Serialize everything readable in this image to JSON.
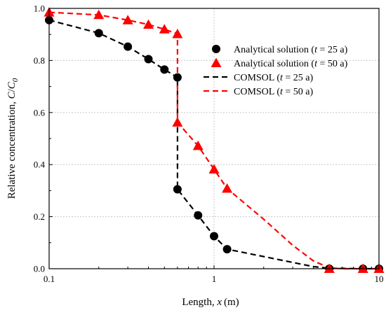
{
  "chart_data": {
    "type": "line",
    "xlabel": "Length, x (m)",
    "xlabel_parts": {
      "prefix": "Length, ",
      "var": "x",
      "unit": " (m)"
    },
    "ylabel": "Relative concentration, C/C0",
    "ylabel_parts": {
      "prefix": "Relative concentration, ",
      "var1": "C",
      "slash": "/",
      "var2": "C",
      "sub": "0"
    },
    "xscale": "log",
    "xlim": [
      0.1,
      10
    ],
    "ylim": [
      0,
      1.0
    ],
    "x_ticks": [
      {
        "value": 0.1,
        "label": "0.1"
      },
      {
        "value": 1,
        "label": "1"
      },
      {
        "value": 10,
        "label": "10"
      }
    ],
    "y_ticks": [
      {
        "value": 0.0,
        "label": "0.0"
      },
      {
        "value": 0.2,
        "label": "0.2"
      },
      {
        "value": 0.4,
        "label": "0.4"
      },
      {
        "value": 0.6,
        "label": "0.6"
      },
      {
        "value": 0.8,
        "label": "0.8"
      },
      {
        "value": 1.0,
        "label": "1.0"
      }
    ],
    "grid": true,
    "legend_position": "upper-right",
    "series": [
      {
        "name": "Analytical solution (t = 25 a)",
        "label_parts": {
          "prefix": "Analytical solution (",
          "var": "t",
          "suffix": " = 25 a)"
        },
        "kind": "scatter",
        "marker": "circle",
        "color": "#000000",
        "x": [
          0.1,
          0.2,
          0.3,
          0.4,
          0.5,
          0.6,
          0.6,
          0.8,
          1.0,
          1.2,
          5,
          8,
          10
        ],
        "y": [
          0.955,
          0.905,
          0.853,
          0.805,
          0.765,
          0.735,
          0.305,
          0.205,
          0.125,
          0.075,
          0.0,
          0.0,
          0.0
        ]
      },
      {
        "name": "Analytical solution (t = 50 a)",
        "label_parts": {
          "prefix": "Analytical solution (",
          "var": "t",
          "suffix": " = 50 a)"
        },
        "kind": "scatter",
        "marker": "triangle",
        "color": "#ff0000",
        "x": [
          0.1,
          0.2,
          0.3,
          0.4,
          0.5,
          0.6,
          0.6,
          0.8,
          1.0,
          1.2,
          5,
          8,
          10
        ],
        "y": [
          0.985,
          0.975,
          0.955,
          0.938,
          0.92,
          0.902,
          0.562,
          0.472,
          0.382,
          0.308,
          0.0,
          0.0,
          0.0
        ]
      },
      {
        "name": "COMSOL (t = 25 a)",
        "label_parts": {
          "prefix": "COMSOL (",
          "var": "t",
          "suffix": " = 25 a)"
        },
        "kind": "line",
        "dash": true,
        "color": "#000000",
        "x": [
          0.1,
          0.2,
          0.3,
          0.4,
          0.5,
          0.6,
          0.6,
          0.8,
          1.0,
          1.2,
          4,
          5,
          8,
          10
        ],
        "y": [
          0.955,
          0.905,
          0.853,
          0.805,
          0.765,
          0.735,
          0.305,
          0.205,
          0.125,
          0.075,
          0.008,
          0.002,
          0.0,
          0.0
        ]
      },
      {
        "name": "COMSOL (t = 50 a)",
        "label_parts": {
          "prefix": "COMSOL (",
          "var": "t",
          "suffix": " = 50 a)"
        },
        "kind": "line",
        "dash": true,
        "color": "#ff0000",
        "x": [
          0.1,
          0.2,
          0.3,
          0.4,
          0.5,
          0.6,
          0.6,
          0.8,
          1.0,
          1.2,
          2,
          3,
          4,
          5,
          6,
          8,
          10
        ],
        "y": [
          0.985,
          0.975,
          0.955,
          0.938,
          0.92,
          0.902,
          0.562,
          0.472,
          0.382,
          0.308,
          0.19,
          0.09,
          0.03,
          0.003,
          0.0,
          0.0,
          0.0
        ]
      }
    ]
  }
}
